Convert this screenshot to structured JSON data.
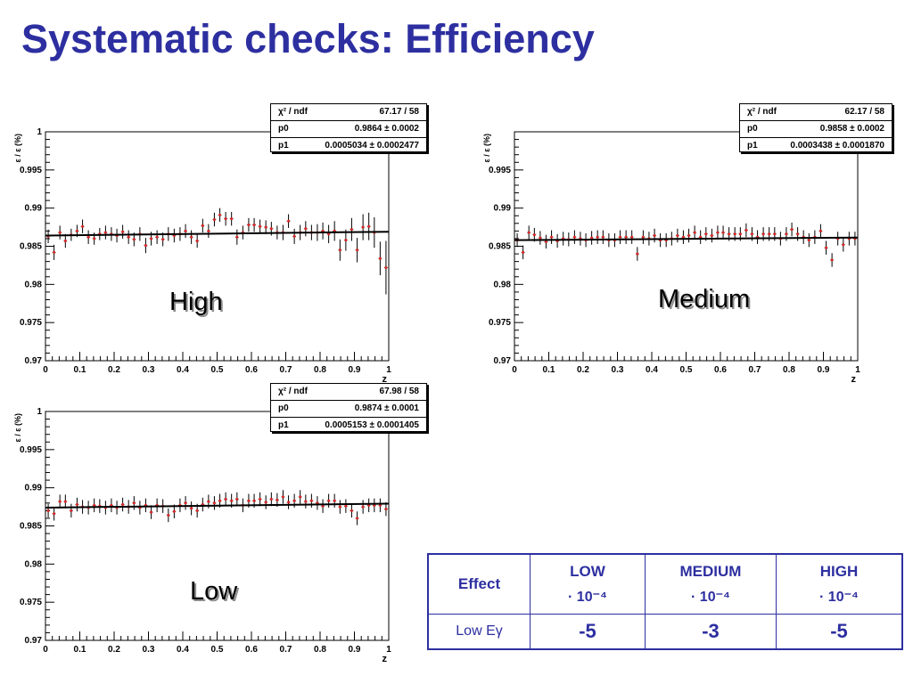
{
  "slide": {
    "title": "Systematic checks: Efficiency"
  },
  "panels": [
    {
      "label": "High",
      "stats": {
        "chi2_label": "χ² / ndf",
        "chi2_value": "67.17 / 58",
        "p0_label": "p0",
        "p0_value": "0.9864 ± 0.0002",
        "p1_label": "p1",
        "p1_value": "0.0005034 ± 0.0002477"
      },
      "ytick_labels": [
        "0.97",
        "0.975",
        "0.98",
        "0.985",
        "0.99",
        "0.995",
        "1"
      ],
      "xtick_labels": [
        "0",
        "0.1",
        "0.2",
        "0.3",
        "0.4",
        "0.5",
        "0.6",
        "0.7",
        "0.8",
        "0.9",
        "1"
      ]
    },
    {
      "label": "Medium",
      "stats": {
        "chi2_label": "χ² / ndf",
        "chi2_value": "62.17 / 58",
        "p0_label": "p0",
        "p0_value": "0.9858 ± 0.0002",
        "p1_label": "p1",
        "p1_value": "0.0003438 ± 0.0001870"
      },
      "ytick_labels": [
        "0.97",
        "0.975",
        "0.98",
        "0.985",
        "0.99",
        "0.995"
      ],
      "xtick_labels": [
        "0",
        "0.1",
        "0.2",
        "0.3",
        "0.4",
        "0.5",
        "0.6",
        "0.7",
        "0.8",
        "0.9",
        "1"
      ]
    },
    {
      "label": "Low",
      "stats": {
        "chi2_label": "χ² / ndf",
        "chi2_value": "67.98 / 58",
        "p0_label": "p0",
        "p0_value": "0.9874 ± 0.0001",
        "p1_label": "p1",
        "p1_value": "0.0005153 ± 0.0001405"
      },
      "ytick_labels": [
        "0.97",
        "0.975",
        "0.98",
        "0.985",
        "0.99",
        "0.995",
        "1"
      ],
      "xtick_labels": [
        "0",
        "0.1",
        "0.2",
        "0.3",
        "0.4",
        "0.5",
        "0.6",
        "0.7",
        "0.8",
        "0.9",
        "1"
      ]
    }
  ],
  "table": {
    "col_effect": "Effect",
    "col_low": "LOW",
    "col_medium": "MEDIUM",
    "col_high": "HIGH",
    "unit": "· 10⁻⁴",
    "row_label": "Low Eγ",
    "val_low": "-5",
    "val_medium": "-3",
    "val_high": "-5"
  },
  "colors": {
    "title": "#2d2fa0",
    "table_border": "#2d2fa0",
    "marker": "#e32222",
    "fit_line": "#000000",
    "errorbar": "#000000"
  },
  "chart_data": [
    {
      "type": "scatter",
      "label": "High",
      "title": "",
      "xlabel": "z",
      "ylabel": "ε / ε (%)",
      "xlim": [
        0,
        1
      ],
      "ylim": [
        0.97,
        1.0
      ],
      "grid": false,
      "fit": {
        "type": "linear",
        "p0": 0.9864,
        "p1": 0.0005034
      },
      "series": [
        {
          "x": [
            0.008,
            0.025,
            0.042,
            0.058,
            0.075,
            0.092,
            0.108,
            0.125,
            0.142,
            0.158,
            0.175,
            0.192,
            0.208,
            0.225,
            0.242,
            0.258,
            0.275,
            0.292,
            0.308,
            0.325,
            0.342,
            0.358,
            0.375,
            0.392,
            0.408,
            0.425,
            0.442,
            0.458,
            0.475,
            0.492,
            0.508,
            0.525,
            0.542,
            0.558,
            0.575,
            0.592,
            0.608,
            0.625,
            0.642,
            0.658,
            0.675,
            0.692,
            0.708,
            0.725,
            0.742,
            0.758,
            0.775,
            0.792,
            0.808,
            0.825,
            0.842,
            0.858,
            0.875,
            0.892,
            0.908,
            0.925,
            0.942,
            0.958,
            0.975,
            0.992
          ],
          "y": [
            0.9863,
            0.9842,
            0.9868,
            0.9857,
            0.9865,
            0.987,
            0.9876,
            0.9862,
            0.986,
            0.9866,
            0.9868,
            0.9866,
            0.9864,
            0.9869,
            0.9862,
            0.9859,
            0.9866,
            0.9851,
            0.986,
            0.9862,
            0.9859,
            0.9866,
            0.9864,
            0.9866,
            0.987,
            0.9862,
            0.9857,
            0.9877,
            0.987,
            0.9885,
            0.9891,
            0.9886,
            0.9886,
            0.9862,
            0.9868,
            0.9878,
            0.9878,
            0.9876,
            0.9875,
            0.9873,
            0.9868,
            0.9868,
            0.9883,
            0.9863,
            0.9868,
            0.9873,
            0.9868,
            0.9868,
            0.987,
            0.9866,
            0.987,
            0.9845,
            0.9858,
            0.9872,
            0.9845,
            0.9875,
            0.9876,
            0.9868,
            0.9834,
            0.9822
          ],
          "yerr": [
            0.0009,
            0.001,
            0.0009,
            0.0009,
            0.0008,
            0.0008,
            0.0009,
            0.0009,
            0.0008,
            0.0008,
            0.0009,
            0.0009,
            0.0009,
            0.0009,
            0.0009,
            0.0009,
            0.0009,
            0.001,
            0.0009,
            0.0009,
            0.0009,
            0.0009,
            0.0009,
            0.0009,
            0.0009,
            0.0009,
            0.0009,
            0.0009,
            0.0009,
            0.0009,
            0.0009,
            0.0009,
            0.0009,
            0.001,
            0.0009,
            0.0009,
            0.0009,
            0.0009,
            0.0009,
            0.0009,
            0.0009,
            0.001,
            0.0009,
            0.001,
            0.001,
            0.001,
            0.001,
            0.0011,
            0.0011,
            0.0012,
            0.0013,
            0.0014,
            0.0014,
            0.0015,
            0.0016,
            0.0017,
            0.0018,
            0.002,
            0.0022,
            0.0035
          ]
        }
      ]
    },
    {
      "type": "scatter",
      "label": "Medium",
      "title": "",
      "xlabel": "z",
      "ylabel": "ε / ε (%)",
      "xlim": [
        0,
        1
      ],
      "ylim": [
        0.97,
        1.0
      ],
      "grid": false,
      "fit": {
        "type": "linear",
        "p0": 0.9858,
        "p1": 0.0003438
      },
      "series": [
        {
          "x": [
            0.008,
            0.025,
            0.042,
            0.058,
            0.075,
            0.092,
            0.108,
            0.125,
            0.142,
            0.158,
            0.175,
            0.192,
            0.208,
            0.225,
            0.242,
            0.258,
            0.275,
            0.292,
            0.308,
            0.325,
            0.342,
            0.358,
            0.375,
            0.392,
            0.408,
            0.425,
            0.442,
            0.458,
            0.475,
            0.492,
            0.508,
            0.525,
            0.542,
            0.558,
            0.575,
            0.592,
            0.608,
            0.625,
            0.642,
            0.658,
            0.675,
            0.692,
            0.708,
            0.725,
            0.742,
            0.758,
            0.775,
            0.792,
            0.808,
            0.825,
            0.842,
            0.858,
            0.875,
            0.892,
            0.908,
            0.925,
            0.942,
            0.958,
            0.975,
            0.992
          ],
          "y": [
            0.9858,
            0.9842,
            0.9868,
            0.9865,
            0.9861,
            0.9856,
            0.9862,
            0.9857,
            0.986,
            0.9859,
            0.9862,
            0.986,
            0.9858,
            0.9861,
            0.9862,
            0.9862,
            0.9858,
            0.9858,
            0.9862,
            0.9862,
            0.9862,
            0.984,
            0.9862,
            0.986,
            0.9864,
            0.9858,
            0.9858,
            0.986,
            0.9864,
            0.9862,
            0.9864,
            0.9868,
            0.9862,
            0.9866,
            0.9864,
            0.9868,
            0.9868,
            0.9866,
            0.9866,
            0.9866,
            0.9871,
            0.9866,
            0.9862,
            0.9866,
            0.9866,
            0.9866,
            0.986,
            0.9866,
            0.9872,
            0.9866,
            0.9862,
            0.9858,
            0.9862,
            0.987,
            0.9848,
            0.9832,
            0.986,
            0.9852,
            0.986,
            0.986
          ]
        }
      ]
    },
    {
      "type": "scatter",
      "label": "Low",
      "title": "",
      "xlabel": "z",
      "ylabel": "ε / ε (%)",
      "xlim": [
        0,
        1
      ],
      "ylim": [
        0.97,
        1.0
      ],
      "grid": false,
      "fit": {
        "type": "linear",
        "p0": 0.9874,
        "p1": 0.0005153
      },
      "series": [
        {
          "x": [
            0.008,
            0.025,
            0.042,
            0.058,
            0.075,
            0.092,
            0.108,
            0.125,
            0.142,
            0.158,
            0.175,
            0.192,
            0.208,
            0.225,
            0.242,
            0.258,
            0.275,
            0.292,
            0.308,
            0.325,
            0.342,
            0.358,
            0.375,
            0.392,
            0.408,
            0.425,
            0.442,
            0.458,
            0.475,
            0.492,
            0.508,
            0.525,
            0.542,
            0.558,
            0.575,
            0.592,
            0.608,
            0.625,
            0.642,
            0.658,
            0.675,
            0.692,
            0.708,
            0.725,
            0.742,
            0.758,
            0.775,
            0.792,
            0.808,
            0.825,
            0.842,
            0.858,
            0.875,
            0.892,
            0.908,
            0.925,
            0.942,
            0.958,
            0.975,
            0.992
          ],
          "y": [
            0.987,
            0.9866,
            0.9882,
            0.9882,
            0.987,
            0.9878,
            0.9875,
            0.9874,
            0.9877,
            0.9876,
            0.9874,
            0.9877,
            0.9874,
            0.9878,
            0.9875,
            0.988,
            0.9874,
            0.9877,
            0.9868,
            0.9877,
            0.9876,
            0.9864,
            0.9869,
            0.9877,
            0.988,
            0.9873,
            0.987,
            0.9878,
            0.9882,
            0.988,
            0.9883,
            0.9885,
            0.9883,
            0.9885,
            0.9877,
            0.9883,
            0.9883,
            0.9885,
            0.9881,
            0.9885,
            0.9884,
            0.9888,
            0.9881,
            0.9883,
            0.9888,
            0.9882,
            0.9883,
            0.988,
            0.9876,
            0.9883,
            0.9883,
            0.9875,
            0.9876,
            0.987,
            0.986,
            0.9875,
            0.9877,
            0.9877,
            0.9877,
            0.9872
          ]
        }
      ]
    }
  ]
}
